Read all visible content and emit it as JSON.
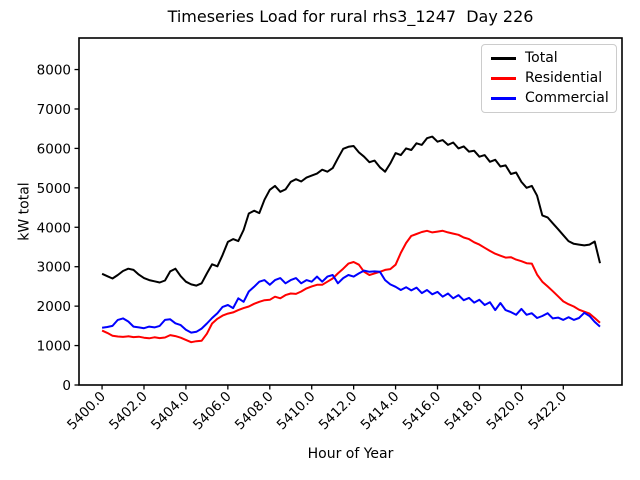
{
  "chart_data": {
    "type": "line",
    "title": "Timeseries Load for rural rhs3_1247  Day 226",
    "xlabel": "Hour of Year",
    "ylabel": "kW total",
    "xlim": [
      5398.9,
      5424.8
    ],
    "ylim": [
      0,
      8800
    ],
    "grid": false,
    "legend_position": "upper-right",
    "xtick_rotation": 45,
    "xticks": [
      5400,
      5402,
      5404,
      5406,
      5408,
      5410,
      5412,
      5414,
      5416,
      5418,
      5420,
      5422
    ],
    "xtick_labels": [
      "5400.0",
      "5402.0",
      "5404.0",
      "5406.0",
      "5408.0",
      "5410.0",
      "5412.0",
      "5414.0",
      "5416.0",
      "5418.0",
      "5420.0",
      "5422.0"
    ],
    "yticks": [
      0,
      1000,
      2000,
      3000,
      4000,
      5000,
      6000,
      7000,
      8000
    ],
    "ytick_labels": [
      "0",
      "1000",
      "2000",
      "3000",
      "4000",
      "5000",
      "6000",
      "7000",
      "8000"
    ],
    "x": [
      5400.0,
      5400.25,
      5400.5,
      5400.75,
      5401.0,
      5401.25,
      5401.5,
      5401.75,
      5402.0,
      5402.25,
      5402.5,
      5402.75,
      5403.0,
      5403.25,
      5403.5,
      5403.75,
      5404.0,
      5404.25,
      5404.5,
      5404.75,
      5405.0,
      5405.25,
      5405.5,
      5405.75,
      5406.0,
      5406.25,
      5406.5,
      5406.75,
      5407.0,
      5407.25,
      5407.5,
      5407.75,
      5408.0,
      5408.25,
      5408.5,
      5408.75,
      5409.0,
      5409.25,
      5409.5,
      5409.75,
      5410.0,
      5410.25,
      5410.5,
      5410.75,
      5411.0,
      5411.25,
      5411.5,
      5411.75,
      5412.0,
      5412.25,
      5412.5,
      5412.75,
      5413.0,
      5413.25,
      5413.5,
      5413.75,
      5414.0,
      5414.25,
      5414.5,
      5414.75,
      5415.0,
      5415.25,
      5415.5,
      5415.75,
      5416.0,
      5416.25,
      5416.5,
      5416.75,
      5417.0,
      5417.25,
      5417.5,
      5417.75,
      5418.0,
      5418.25,
      5418.5,
      5418.75,
      5419.0,
      5419.25,
      5419.5,
      5419.75,
      5420.0,
      5420.25,
      5420.5,
      5420.75,
      5421.0,
      5421.25,
      5421.5,
      5421.75,
      5422.0,
      5422.25,
      5422.5,
      5422.75,
      5423.0,
      5423.25,
      5423.5,
      5423.75
    ],
    "series": [
      {
        "name": "Total",
        "color": "#000000",
        "values": [
          2820,
          2760,
          2700,
          2790,
          2890,
          2950,
          2920,
          2800,
          2710,
          2660,
          2630,
          2600,
          2650,
          2880,
          2950,
          2760,
          2620,
          2550,
          2520,
          2580,
          2830,
          3060,
          3010,
          3300,
          3630,
          3700,
          3650,
          3930,
          4350,
          4420,
          4360,
          4700,
          4950,
          5050,
          4900,
          4960,
          5150,
          5220,
          5160,
          5260,
          5310,
          5360,
          5460,
          5410,
          5500,
          5750,
          5990,
          6040,
          6060,
          5900,
          5790,
          5650,
          5690,
          5520,
          5410,
          5620,
          5880,
          5830,
          6000,
          5960,
          6130,
          6090,
          6260,
          6300,
          6170,
          6210,
          6090,
          6150,
          6000,
          6050,
          5920,
          5940,
          5790,
          5830,
          5660,
          5710,
          5540,
          5570,
          5350,
          5390,
          5150,
          5000,
          5050,
          4800,
          4300,
          4250,
          4100,
          3950,
          3800,
          3650,
          3580,
          3560,
          3540,
          3560,
          3640,
          3090
        ]
      },
      {
        "name": "Residential",
        "color": "#ff0000",
        "values": [
          1380,
          1320,
          1250,
          1230,
          1220,
          1235,
          1215,
          1225,
          1200,
          1185,
          1210,
          1190,
          1205,
          1265,
          1240,
          1200,
          1145,
          1085,
          1110,
          1120,
          1300,
          1560,
          1680,
          1760,
          1810,
          1840,
          1900,
          1950,
          1990,
          2060,
          2110,
          2150,
          2160,
          2240,
          2200,
          2280,
          2320,
          2310,
          2370,
          2450,
          2500,
          2540,
          2540,
          2620,
          2700,
          2830,
          2950,
          3080,
          3120,
          3050,
          2870,
          2790,
          2830,
          2870,
          2920,
          2940,
          3050,
          3350,
          3600,
          3780,
          3830,
          3880,
          3910,
          3870,
          3890,
          3910,
          3870,
          3840,
          3810,
          3740,
          3700,
          3620,
          3560,
          3480,
          3400,
          3330,
          3280,
          3230,
          3240,
          3180,
          3140,
          3090,
          3080,
          2800,
          2620,
          2500,
          2380,
          2250,
          2120,
          2050,
          1990,
          1910,
          1860,
          1810,
          1700,
          1580
        ]
      },
      {
        "name": "Commercial",
        "color": "#0000ff",
        "values": [
          1450,
          1470,
          1500,
          1650,
          1690,
          1610,
          1480,
          1460,
          1440,
          1480,
          1460,
          1500,
          1650,
          1665,
          1565,
          1520,
          1400,
          1330,
          1350,
          1430,
          1560,
          1700,
          1820,
          1980,
          2030,
          1950,
          2200,
          2110,
          2370,
          2490,
          2620,
          2660,
          2540,
          2660,
          2710,
          2580,
          2660,
          2710,
          2580,
          2660,
          2620,
          2750,
          2620,
          2750,
          2790,
          2580,
          2710,
          2790,
          2750,
          2830,
          2900,
          2870,
          2880,
          2870,
          2660,
          2550,
          2490,
          2410,
          2480,
          2400,
          2470,
          2330,
          2410,
          2300,
          2360,
          2240,
          2320,
          2200,
          2280,
          2150,
          2210,
          2090,
          2160,
          2030,
          2100,
          1900,
          2080,
          1900,
          1850,
          1780,
          1930,
          1780,
          1820,
          1700,
          1750,
          1820,
          1690,
          1710,
          1650,
          1720,
          1650,
          1700,
          1830,
          1750,
          1600,
          1480
        ]
      }
    ]
  }
}
